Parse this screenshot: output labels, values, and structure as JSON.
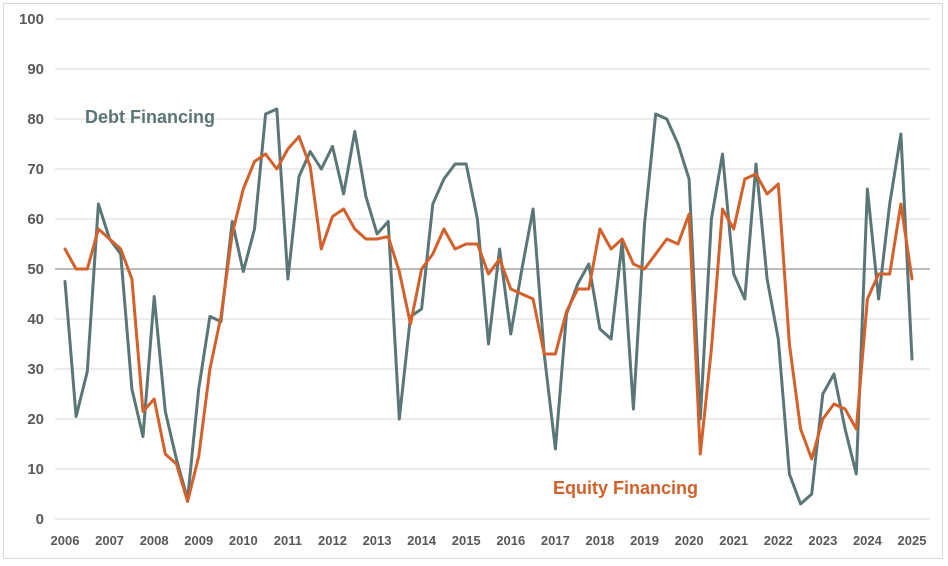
{
  "chart_data": {
    "type": "line",
    "title": "",
    "xlabel": "",
    "ylabel": "",
    "ylim": [
      0,
      100
    ],
    "xlim": [
      2006,
      2025
    ],
    "y_ticks": [
      0,
      10,
      20,
      30,
      40,
      50,
      60,
      70,
      80,
      90,
      100
    ],
    "x_ticks": [
      2006,
      2007,
      2008,
      2009,
      2010,
      2011,
      2012,
      2013,
      2014,
      2015,
      2016,
      2017,
      2018,
      2019,
      2020,
      2021,
      2022,
      2023,
      2024,
      2025
    ],
    "grid": true,
    "reference_line": 50,
    "colors": {
      "debt": "#5b7676",
      "equity": "#d2612b",
      "grid": "#d9d9d9",
      "reference": "#a6a6a6"
    },
    "series": [
      {
        "name": "Debt Financing",
        "x": [
          2006.0,
          2006.25,
          2006.5,
          2006.75,
          2007.0,
          2007.25,
          2007.5,
          2007.75,
          2008.0,
          2008.25,
          2008.5,
          2008.75,
          2009.0,
          2009.25,
          2009.5,
          2009.75,
          2010.0,
          2010.25,
          2010.5,
          2010.75,
          2011.0,
          2011.25,
          2011.5,
          2011.75,
          2012.0,
          2012.25,
          2012.5,
          2012.75,
          2013.0,
          2013.25,
          2013.5,
          2013.75,
          2014.0,
          2014.25,
          2014.5,
          2014.75,
          2015.0,
          2015.25,
          2015.5,
          2015.75,
          2016.0,
          2016.25,
          2016.5,
          2016.75,
          2017.0,
          2017.25,
          2017.5,
          2017.75,
          2018.0,
          2018.25,
          2018.5,
          2018.75,
          2019.0,
          2019.25,
          2019.5,
          2019.75,
          2020.0,
          2020.25,
          2020.5,
          2020.75,
          2021.0,
          2021.25,
          2021.5,
          2021.75,
          2022.0,
          2022.25,
          2022.5,
          2022.75,
          2023.0,
          2023.25,
          2023.5,
          2023.75,
          2024.0,
          2024.25,
          2024.5,
          2024.75,
          2025.0
        ],
        "values": [
          47.5,
          20.5,
          29.5,
          63,
          56,
          53,
          26,
          16.5,
          44.5,
          21.5,
          12,
          4,
          26,
          40.5,
          39.5,
          59.5,
          49.5,
          58,
          81,
          82,
          48,
          68.5,
          73.5,
          70,
          74.5,
          65,
          77.5,
          64.5,
          57,
          59.5,
          20,
          40.5,
          42,
          63,
          68,
          71,
          71,
          60,
          35,
          54,
          37,
          50,
          62,
          33,
          14,
          41,
          47,
          51,
          38,
          36,
          55.5,
          22,
          59,
          81,
          80,
          75,
          68,
          20,
          60,
          73,
          49,
          44,
          71,
          48,
          36,
          9,
          3,
          5,
          25,
          29,
          18,
          9,
          66,
          44,
          63,
          77,
          32
        ]
      },
      {
        "name": "Equity Financing",
        "x": [
          2006.0,
          2006.25,
          2006.5,
          2006.75,
          2007.0,
          2007.25,
          2007.5,
          2007.75,
          2008.0,
          2008.25,
          2008.5,
          2008.75,
          2009.0,
          2009.25,
          2009.5,
          2009.75,
          2010.0,
          2010.25,
          2010.5,
          2010.75,
          2011.0,
          2011.25,
          2011.5,
          2011.75,
          2012.0,
          2012.25,
          2012.5,
          2012.75,
          2013.0,
          2013.25,
          2013.5,
          2013.75,
          2014.0,
          2014.25,
          2014.5,
          2014.75,
          2015.0,
          2015.25,
          2015.5,
          2015.75,
          2016.0,
          2016.25,
          2016.5,
          2016.75,
          2017.0,
          2017.25,
          2017.5,
          2017.75,
          2018.0,
          2018.25,
          2018.5,
          2018.75,
          2019.0,
          2019.25,
          2019.5,
          2019.75,
          2020.0,
          2020.25,
          2020.5,
          2020.75,
          2021.0,
          2021.25,
          2021.5,
          2021.75,
          2022.0,
          2022.25,
          2022.5,
          2022.75,
          2023.0,
          2023.25,
          2023.5,
          2023.75,
          2024.0,
          2024.25,
          2024.5,
          2024.75,
          2025.0
        ],
        "values": [
          54,
          50,
          50,
          58,
          56,
          54,
          48,
          21.5,
          24,
          13,
          11,
          3.5,
          12.5,
          30,
          40.5,
          57,
          66,
          71.5,
          73,
          70,
          74,
          76.5,
          70.5,
          54,
          60.5,
          62,
          58,
          56,
          56,
          56.5,
          49.5,
          39,
          50,
          53,
          58,
          54,
          55,
          55,
          49,
          52,
          46,
          45,
          44,
          33,
          33,
          41.5,
          46,
          46,
          58,
          54,
          56,
          51,
          50,
          53,
          56,
          55,
          61,
          13,
          34,
          62,
          58,
          68,
          69,
          65,
          67,
          35,
          18,
          12,
          20,
          23,
          22,
          18,
          44,
          49,
          49,
          63,
          48
        ]
      }
    ]
  }
}
